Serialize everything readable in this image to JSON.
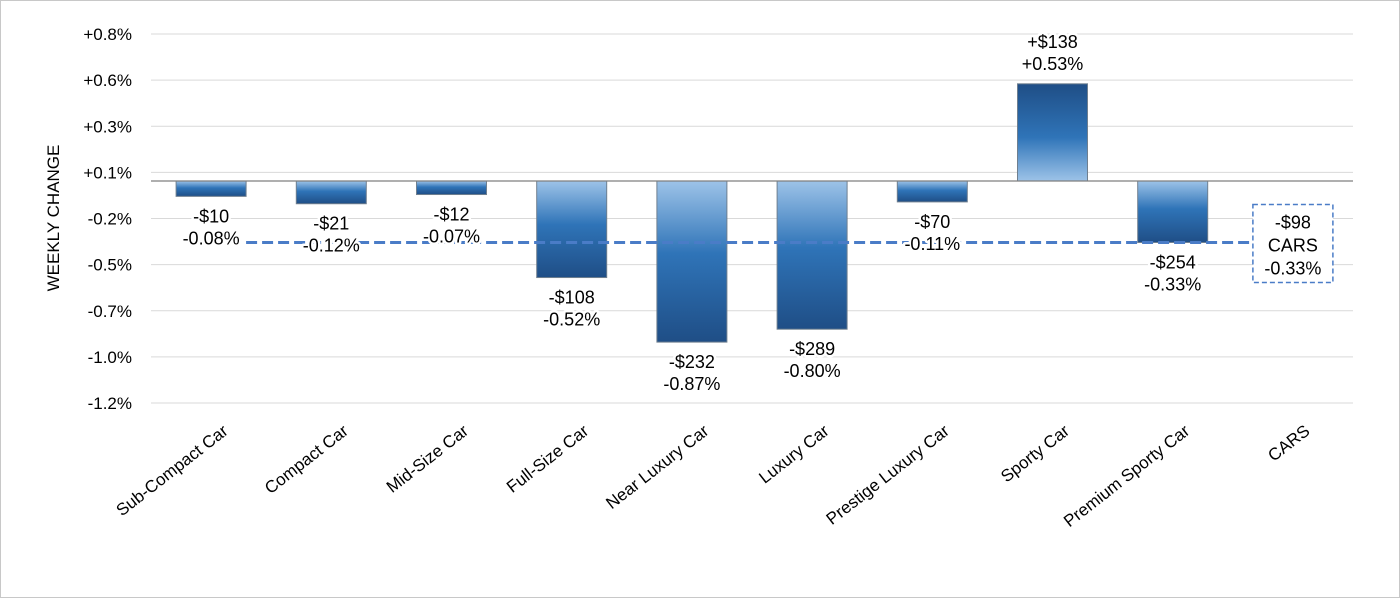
{
  "chart_data": {
    "type": "bar",
    "ylabel": "WEEKLY CHANGE",
    "xlabel": "",
    "title": "",
    "ylim": [
      -1.2,
      0.8
    ],
    "yticks": [
      "+0.8%",
      "+0.6%",
      "+0.3%",
      "+0.1%",
      "-0.2%",
      "-0.5%",
      "-0.7%",
      "-1.0%",
      "-1.2%"
    ],
    "grid": true,
    "categories": [
      "Sub-Compact Car",
      "Compact Car",
      "Mid-Size Car",
      "Full-Size Car",
      "Near Luxury Car",
      "Luxury Car",
      "Prestige Luxury Car",
      "Sporty Car",
      "Premium Sporty Car",
      "CARS"
    ],
    "values": [
      -0.08,
      -0.12,
      -0.07,
      -0.52,
      -0.87,
      -0.8,
      -0.11,
      0.53,
      -0.33,
      null
    ],
    "dollar_labels": [
      "-$10",
      "-$21",
      "-$12",
      "-$108",
      "-$232",
      "-$289",
      "-$70",
      "+$138",
      "-$254",
      ""
    ],
    "percent_labels": [
      "-0.08%",
      "-0.12%",
      "-0.07%",
      "-0.52%",
      "-0.87%",
      "-0.80%",
      "-0.11%",
      "+0.53%",
      "-0.33%",
      ""
    ],
    "reference_line": {
      "value": -0.33,
      "dollar_label": "-$98",
      "name": "CARS",
      "percent_label": "-0.33%"
    },
    "colors": {
      "bar_dark": "#1f4e86",
      "bar_mid": "#2f74b8",
      "bar_light": "#9dc3e8",
      "reference_line": "#4a7cc7",
      "grid": "#d9d9d9",
      "axis": "#7f7f7f"
    }
  }
}
